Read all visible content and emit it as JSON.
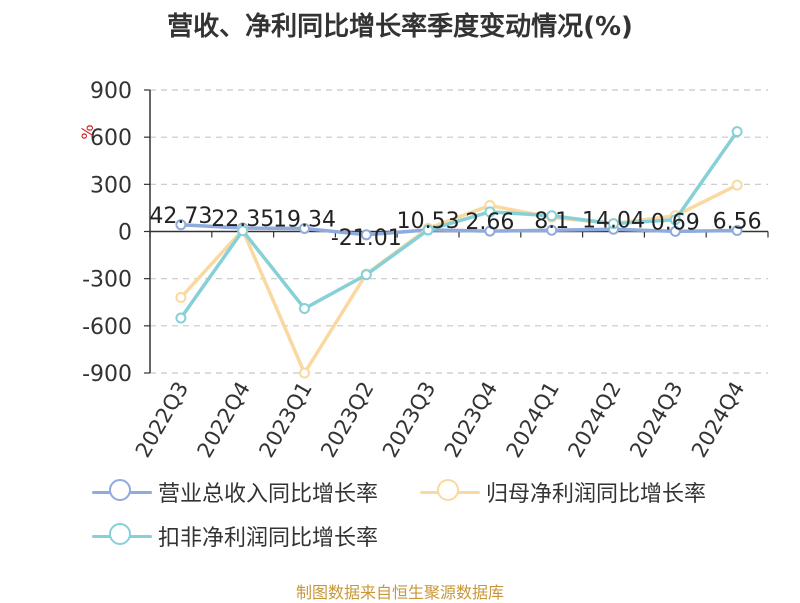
{
  "title": "营收、净利同比增长率季度变动情况(%)",
  "source_note": "制图数据来自恒生聚源数据库",
  "chart_data": {
    "type": "line",
    "categories": [
      "2022Q3",
      "2022Q4",
      "2023Q1",
      "2023Q2",
      "2023Q3",
      "2023Q4",
      "2024Q1",
      "2024Q2",
      "2024Q3",
      "2024Q4"
    ],
    "ylabel": "%",
    "ylim": [
      -900,
      900
    ],
    "yticks": [
      900,
      600,
      300,
      0,
      -300,
      -600,
      -900
    ],
    "ytick_labels": [
      "900",
      "600",
      "300",
      "0",
      "-300",
      "-600",
      "-900"
    ],
    "grid": true,
    "legend_position": "bottom",
    "series": [
      {
        "name": "营业总收入同比增长率",
        "color": "#8faadc",
        "values": [
          42.73,
          22.35,
          19.34,
          -21.01,
          10.53,
          2.66,
          8.1,
          14.04,
          0.69,
          6.56
        ],
        "labels": [
          "42.73",
          "22.35",
          "19.34",
          "-21.01",
          "10.53",
          "2.66",
          "8.1",
          "14.04",
          "0.69",
          "6.56"
        ]
      },
      {
        "name": "归母净利润同比增长率",
        "color": "#fad9a0",
        "values": [
          -420,
          10,
          -900,
          -270,
          20,
          165,
          90,
          50,
          100,
          295
        ]
      },
      {
        "name": "扣非净利润同比增长率",
        "color": "#86d0d8",
        "values": [
          -550,
          5,
          -490,
          -275,
          10,
          125,
          100,
          50,
          75,
          635
        ]
      }
    ]
  }
}
